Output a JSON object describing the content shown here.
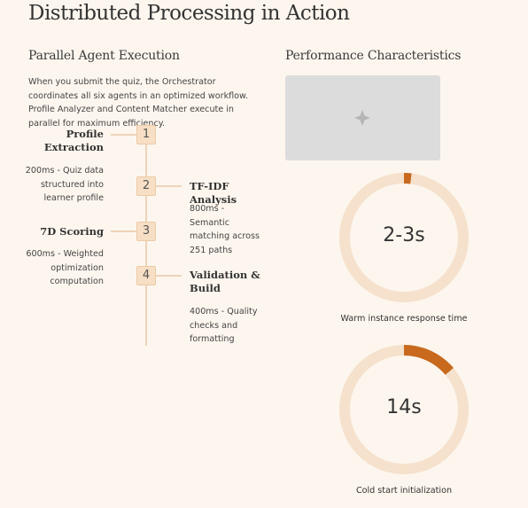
{
  "header": {
    "title": "Distributed Processing in Action"
  },
  "execution": {
    "heading": "Parallel Agent Execution",
    "description": "When you submit the quiz, the Orchestrator coordinates all six agents in an optimized workflow. Profile Analyzer and Content Matcher execute in parallel for maximum efficiency.",
    "steps": [
      {
        "number": 1,
        "title": "Profile Extraction",
        "detail": "200ms - Quiz data structured into learner profile"
      },
      {
        "number": 2,
        "title": "TF-IDF Analysis",
        "detail": "800ms - Semantic matching across 251 paths"
      },
      {
        "number": 3,
        "title": "7D Scoring",
        "detail": "600ms - Weighted optimization computation"
      },
      {
        "number": 4,
        "title": "Validation & Build",
        "detail": "400ms - Quality checks and formatting"
      }
    ]
  },
  "performance": {
    "heading": "Performance Characteristics",
    "metrics": [
      {
        "value": "2-3s",
        "caption": "Warm instance response time"
      },
      {
        "value": "14s",
        "caption": "Cold start initialization"
      }
    ]
  }
}
